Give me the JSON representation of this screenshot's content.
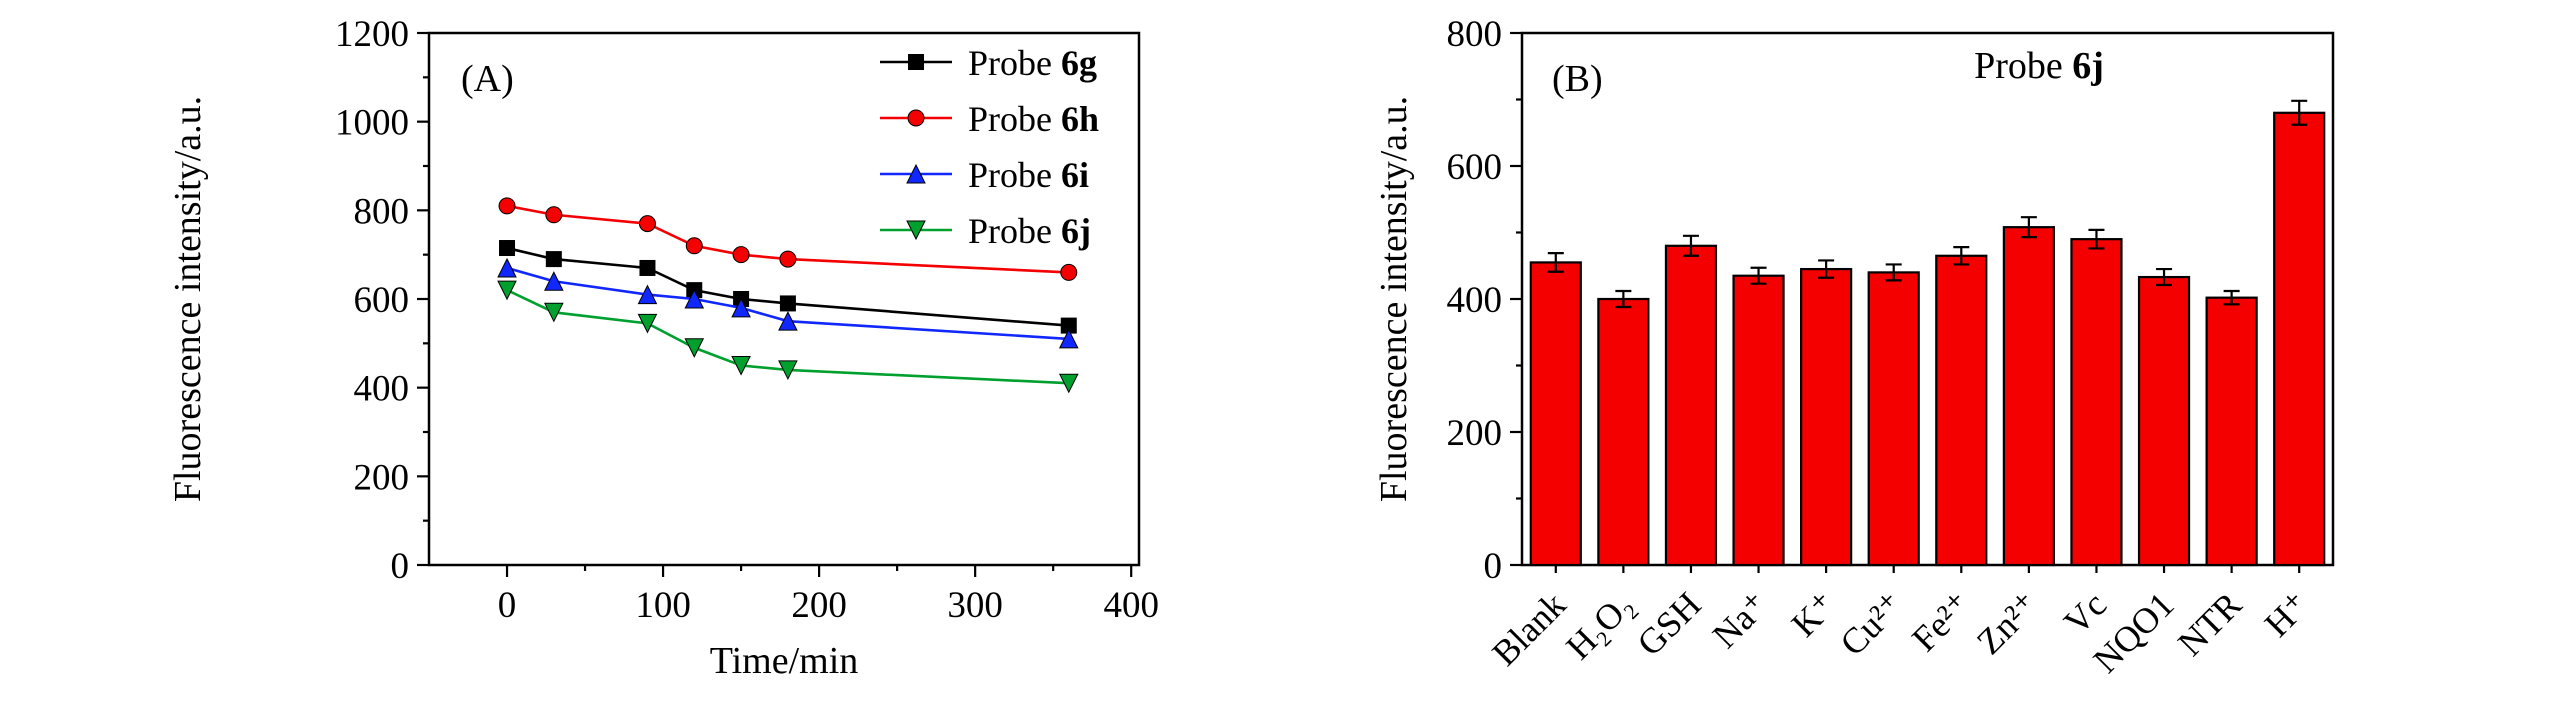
{
  "page": {
    "background": "#ffffff"
  },
  "chart_data": [
    {
      "type": "line",
      "panel_label": "(A)",
      "xlabel": "Time/min",
      "ylabel": "Fluorescence intensity/a.u.",
      "xlim": [
        -50,
        405
      ],
      "ylim": [
        0,
        1200
      ],
      "xticks": [
        0,
        100,
        200,
        300,
        400
      ],
      "yticks": [
        0,
        200,
        400,
        600,
        800,
        1000,
        1200
      ],
      "x_minor_step": 50,
      "y_minor_step": 100,
      "x": [
        0,
        30,
        90,
        120,
        150,
        180,
        360
      ],
      "series": [
        {
          "label": "Probe",
          "variant": "6g",
          "color": "#000000",
          "marker": "square",
          "values": [
            715,
            690,
            670,
            620,
            600,
            590,
            540
          ]
        },
        {
          "label": "Probe",
          "variant": "6h",
          "color": "#f40000",
          "marker": "circle",
          "values": [
            810,
            790,
            770,
            720,
            700,
            690,
            660
          ]
        },
        {
          "label": "Probe",
          "variant": "6i",
          "color": "#1028ff",
          "marker": "triangle-up",
          "values": [
            670,
            640,
            610,
            600,
            580,
            550,
            510
          ]
        },
        {
          "label": "Probe",
          "variant": "6j",
          "color": "#00a02f",
          "marker": "triangle-down",
          "values": [
            620,
            570,
            545,
            490,
            450,
            440,
            410
          ]
        }
      ],
      "legend_position": "top-right",
      "grid": false
    },
    {
      "type": "bar",
      "panel_label": "(B)",
      "annotation": {
        "prefix": "Probe ",
        "bold": "6j"
      },
      "ylabel": "Fluorescence intensity/a.u.",
      "ylim": [
        0,
        800
      ],
      "yticks": [
        0,
        200,
        400,
        600,
        800
      ],
      "y_minor_step": 100,
      "categories": [
        "Blank",
        "H₂O₂",
        "GSH",
        "Na⁺",
        "K⁺",
        "Cu²⁺",
        "Fe²⁺",
        "Zn²⁺",
        "Vc",
        "NQO1",
        "NTR",
        "H⁺"
      ],
      "values": [
        455,
        400,
        480,
        435,
        445,
        440,
        465,
        508,
        490,
        433,
        402,
        680
      ],
      "errors": [
        14,
        12,
        15,
        12,
        13,
        12,
        13,
        15,
        14,
        12,
        10,
        18
      ],
      "bar_color": "#f40000",
      "bar_edge_color": "#000000",
      "grid": false
    }
  ]
}
